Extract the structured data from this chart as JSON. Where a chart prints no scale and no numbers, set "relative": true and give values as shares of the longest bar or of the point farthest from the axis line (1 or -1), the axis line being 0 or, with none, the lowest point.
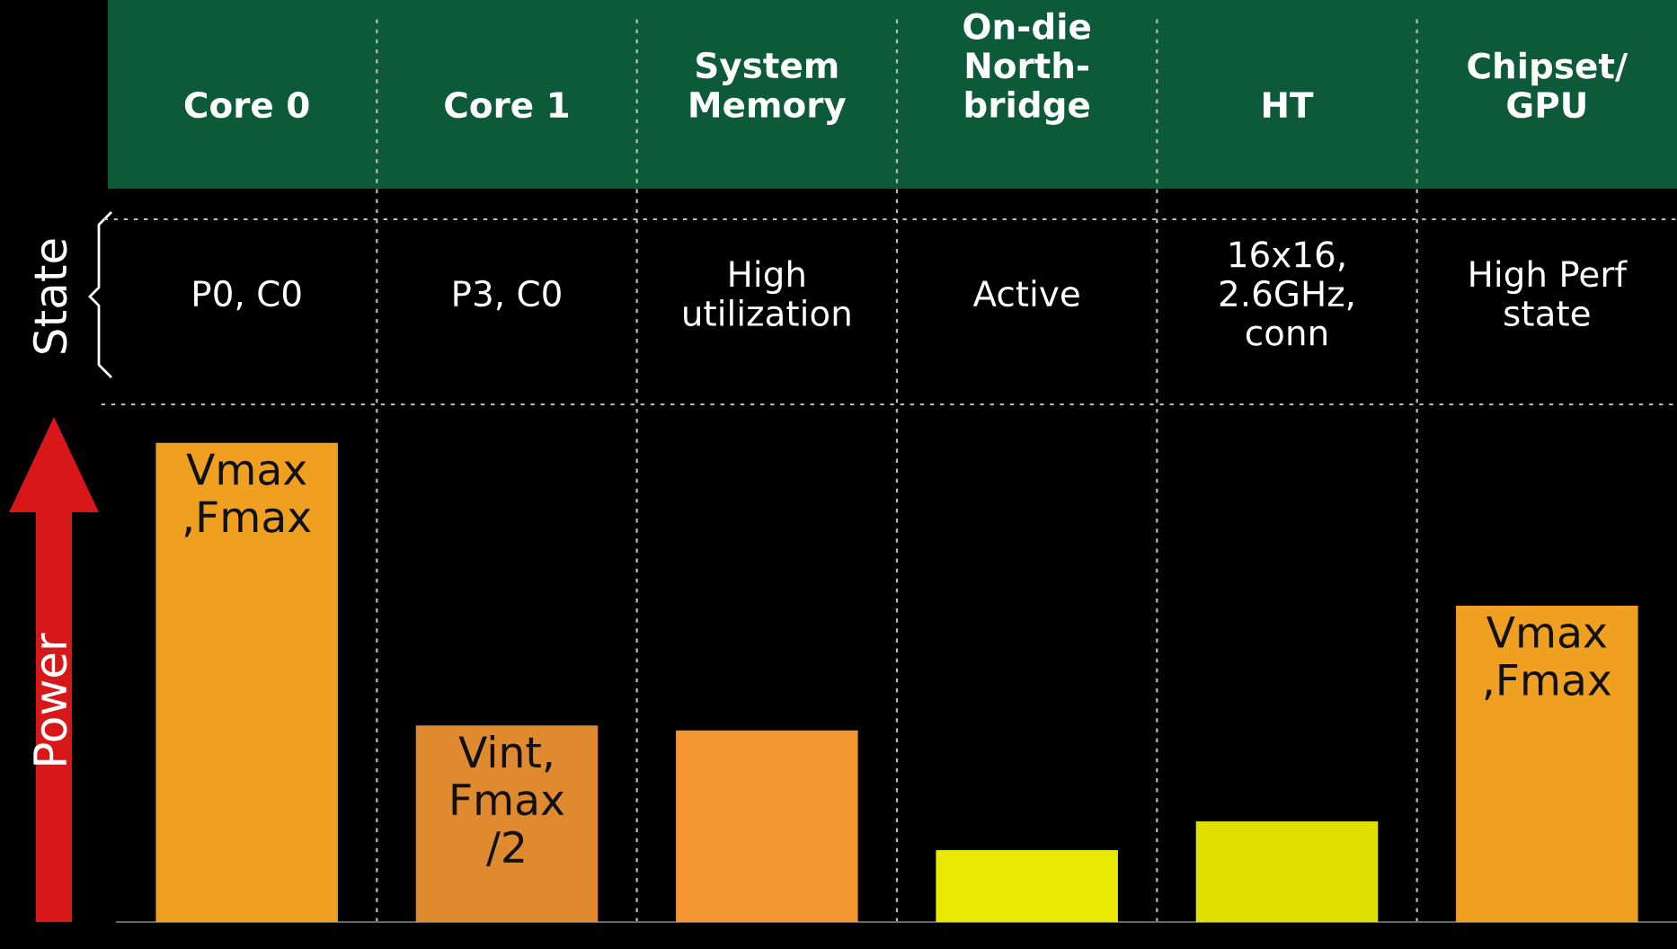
{
  "chart_data": {
    "type": "bar",
    "relative": true,
    "categories": [
      "Core 0",
      "Core 1",
      "System\nMemory",
      "On-die\nNorth-\nbridge",
      "HT",
      "Chipset/\nGPU"
    ],
    "values": [
      1,
      0.41,
      0.4,
      0.15,
      0.21,
      0.66
    ],
    "colors": [
      "#f0a020",
      "#e08a30",
      "#f39530",
      "#e8e800",
      "#e0e000",
      "#f0a020"
    ],
    "ylabel": "Power",
    "annotations": [
      "State",
      "P0, C0",
      "P3, C0",
      "High\nutilization",
      "Active",
      "16x16,\n2.6GHz,\nconn",
      "High Perf\nstate",
      {
        "text": "Vmax\n,Fmax",
        "x": "Core 0",
        "y": 1
      },
      {
        "text": "Vint,\nFmax\n/2",
        "x": "Core 1",
        "y": 0.41
      },
      {
        "text": "Vmax\n,Fmax",
        "x": "Chipset/\nGPU",
        "y": 0.66
      }
    ],
    "grid": "x"
  }
}
